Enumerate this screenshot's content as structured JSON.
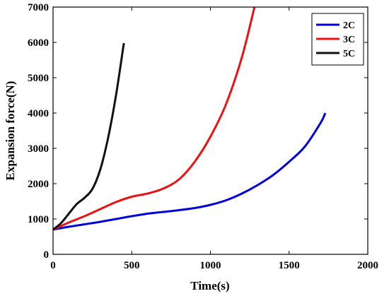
{
  "chart_data": {
    "type": "line",
    "xlabel": "Time(s)",
    "ylabel": "Expansion force(N)",
    "xlim": [
      0,
      2000
    ],
    "ylim": [
      0,
      7000
    ],
    "x_ticks": [
      0,
      500,
      1000,
      1500,
      2000
    ],
    "y_ticks": [
      0,
      1000,
      2000,
      3000,
      4000,
      5000,
      6000,
      7000
    ],
    "grid": false,
    "legend_position": "top-right",
    "series": [
      {
        "name": "2C",
        "color": "#0000dd",
        "points": [
          [
            0,
            700
          ],
          [
            100,
            780
          ],
          [
            200,
            850
          ],
          [
            300,
            920
          ],
          [
            400,
            1000
          ],
          [
            500,
            1080
          ],
          [
            600,
            1150
          ],
          [
            700,
            1200
          ],
          [
            800,
            1250
          ],
          [
            900,
            1310
          ],
          [
            1000,
            1400
          ],
          [
            1100,
            1530
          ],
          [
            1200,
            1720
          ],
          [
            1300,
            1960
          ],
          [
            1400,
            2250
          ],
          [
            1500,
            2620
          ],
          [
            1600,
            3050
          ],
          [
            1700,
            3720
          ],
          [
            1730,
            4000
          ]
        ]
      },
      {
        "name": "3C",
        "color": "#ee1111",
        "points": [
          [
            0,
            700
          ],
          [
            100,
            900
          ],
          [
            200,
            1080
          ],
          [
            300,
            1280
          ],
          [
            400,
            1480
          ],
          [
            500,
            1630
          ],
          [
            600,
            1720
          ],
          [
            700,
            1860
          ],
          [
            800,
            2120
          ],
          [
            900,
            2620
          ],
          [
            1000,
            3330
          ],
          [
            1100,
            4260
          ],
          [
            1200,
            5580
          ],
          [
            1280,
            7000
          ]
        ]
      },
      {
        "name": "5C",
        "color": "#111111",
        "points": [
          [
            0,
            700
          ],
          [
            50,
            880
          ],
          [
            100,
            1150
          ],
          [
            150,
            1420
          ],
          [
            200,
            1600
          ],
          [
            250,
            1850
          ],
          [
            300,
            2400
          ],
          [
            350,
            3300
          ],
          [
            400,
            4500
          ],
          [
            450,
            5980
          ]
        ]
      }
    ]
  }
}
